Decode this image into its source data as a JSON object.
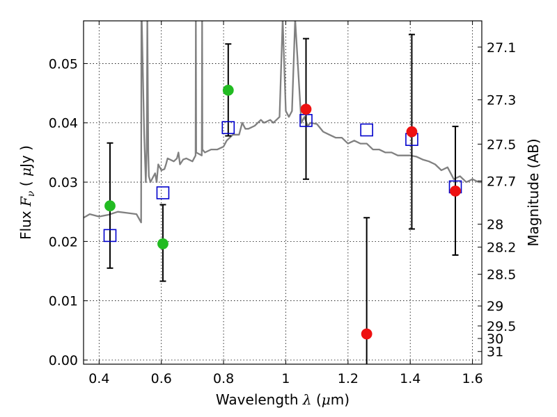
{
  "chart_data": {
    "type": "scatter",
    "xlabel": "Wavelength  λ (μm)",
    "xlabel_parts": {
      "prefix": "Wavelength  ",
      "symbol": "λ",
      "unit_open": " (",
      "unit_mu": "μ",
      "unit_rest": "m)"
    },
    "ylabel": "Flux  Fν (  μJy )",
    "ylabel_parts": {
      "prefix": "Flux  ",
      "symbol": "F",
      "sub": "ν",
      "unit_open": "  (  ",
      "unit_mu": "μ",
      "unit_rest": "Jy )"
    },
    "y2label": "Magnitude (AB)",
    "xlim": [
      0.35,
      1.63
    ],
    "ylim": [
      -0.0007,
      0.0572
    ],
    "x_ticks": [
      {
        "value": 0.4,
        "label": "0.4"
      },
      {
        "value": 0.6,
        "label": "0.6"
      },
      {
        "value": 0.8,
        "label": "0.8"
      },
      {
        "value": 1.0,
        "label": "1"
      },
      {
        "value": 1.2,
        "label": "1.2"
      },
      {
        "value": 1.4,
        "label": "1.4"
      },
      {
        "value": 1.6,
        "label": "1.6"
      }
    ],
    "y_ticks": [
      {
        "value": 0.0,
        "label": "0.00"
      },
      {
        "value": 0.01,
        "label": "0.01"
      },
      {
        "value": 0.02,
        "label": "0.02"
      },
      {
        "value": 0.03,
        "label": "0.03"
      },
      {
        "value": 0.04,
        "label": "0.04"
      },
      {
        "value": 0.05,
        "label": "0.05"
      }
    ],
    "y2_ticks": [
      {
        "flux": 0.05277,
        "label": "27.1"
      },
      {
        "flux": 0.04388,
        "label": "27.3"
      },
      {
        "flux": 0.03641,
        "label": "27.5"
      },
      {
        "flux": 0.0302,
        "label": "27.7"
      },
      {
        "flux": 0.02291,
        "label": "28"
      },
      {
        "flux": 0.01904,
        "label": "28.2"
      },
      {
        "flux": 0.01446,
        "label": "28.5"
      },
      {
        "flux": 0.00912,
        "label": "29"
      },
      {
        "flux": 0.00575,
        "label": "29.5"
      },
      {
        "flux": 0.00363,
        "label": "30"
      },
      {
        "flux": 0.00144,
        "label": "31"
      }
    ],
    "grid": true,
    "series": [
      {
        "kind": "model-spectrum",
        "color": "#808080",
        "x": [
          0.35,
          0.37,
          0.4,
          0.43,
          0.46,
          0.49,
          0.52,
          0.535,
          0.536,
          0.537,
          0.545,
          0.55,
          0.553,
          0.555,
          0.558,
          0.56,
          0.565,
          0.575,
          0.58,
          0.585,
          0.59,
          0.6,
          0.61,
          0.615,
          0.62,
          0.64,
          0.65,
          0.655,
          0.66,
          0.67,
          0.68,
          0.7,
          0.71,
          0.711,
          0.712,
          0.73,
          0.731,
          0.732,
          0.74,
          0.76,
          0.78,
          0.8,
          0.81,
          0.82,
          0.83,
          0.85,
          0.86,
          0.87,
          0.88,
          0.9,
          0.91,
          0.92,
          0.93,
          0.95,
          0.96,
          0.98,
          0.99,
          1.0,
          1.01,
          1.02,
          1.03,
          1.05,
          1.06,
          1.07,
          1.08,
          1.1,
          1.12,
          1.14,
          1.16,
          1.18,
          1.2,
          1.22,
          1.24,
          1.26,
          1.28,
          1.3,
          1.32,
          1.34,
          1.36,
          1.38,
          1.4,
          1.42,
          1.44,
          1.46,
          1.48,
          1.5,
          1.52,
          1.54,
          1.56,
          1.58,
          1.6,
          1.62,
          1.63
        ],
        "y": [
          0.024,
          0.0246,
          0.0242,
          0.0245,
          0.025,
          0.0248,
          0.0246,
          0.0232,
          0.0575,
          0.0575,
          0.038,
          0.03,
          0.0355,
          0.0575,
          0.035,
          0.031,
          0.03,
          0.031,
          0.0315,
          0.03,
          0.033,
          0.032,
          0.0322,
          0.033,
          0.034,
          0.0335,
          0.034,
          0.035,
          0.033,
          0.0338,
          0.034,
          0.0335,
          0.0345,
          0.0575,
          0.035,
          0.0345,
          0.0575,
          0.0355,
          0.035,
          0.0355,
          0.0355,
          0.036,
          0.037,
          0.0375,
          0.038,
          0.038,
          0.04,
          0.039,
          0.039,
          0.0395,
          0.04,
          0.0405,
          0.04,
          0.0405,
          0.04,
          0.041,
          0.0575,
          0.042,
          0.041,
          0.042,
          0.0575,
          0.04,
          0.041,
          0.0395,
          0.04,
          0.0398,
          0.0385,
          0.038,
          0.0375,
          0.0375,
          0.0365,
          0.037,
          0.0365,
          0.0365,
          0.0355,
          0.0355,
          0.035,
          0.035,
          0.0345,
          0.0345,
          0.0345,
          0.0343,
          0.0338,
          0.0335,
          0.033,
          0.032,
          0.0325,
          0.0305,
          0.031,
          0.03,
          0.0305,
          0.03,
          0.03
        ]
      },
      {
        "kind": "model-photometry",
        "marker": "open-square",
        "color": "#0000cc",
        "points": [
          {
            "x": 0.435,
            "y": 0.021
          },
          {
            "x": 0.605,
            "y": 0.0282
          },
          {
            "x": 0.815,
            "y": 0.0392
          },
          {
            "x": 1.065,
            "y": 0.0404
          },
          {
            "x": 1.26,
            "y": 0.0388
          },
          {
            "x": 1.405,
            "y": 0.0372
          },
          {
            "x": 1.545,
            "y": 0.0292
          }
        ]
      },
      {
        "kind": "observed-green",
        "marker": "filled-circle",
        "color": "#22bb22",
        "points": [
          {
            "x": 0.435,
            "y": 0.026,
            "ylo": 0.0155,
            "yhi": 0.0366
          },
          {
            "x": 0.605,
            "y": 0.0196,
            "ylo": 0.0133,
            "yhi": 0.0262
          },
          {
            "x": 0.815,
            "y": 0.0455,
            "ylo": 0.0378,
            "yhi": 0.0533
          }
        ]
      },
      {
        "kind": "observed-red",
        "marker": "filled-circle",
        "color": "#ee1111",
        "points": [
          {
            "x": 1.065,
            "y": 0.0423,
            "ylo": 0.0305,
            "yhi": 0.0542
          },
          {
            "x": 1.26,
            "y": 0.0044,
            "ylo": null,
            "yhi": 0.024
          },
          {
            "x": 1.405,
            "y": 0.0385,
            "ylo": 0.0221,
            "yhi": 0.0549
          },
          {
            "x": 1.545,
            "y": 0.0285,
            "ylo": 0.0177,
            "yhi": 0.0394
          }
        ]
      }
    ]
  }
}
